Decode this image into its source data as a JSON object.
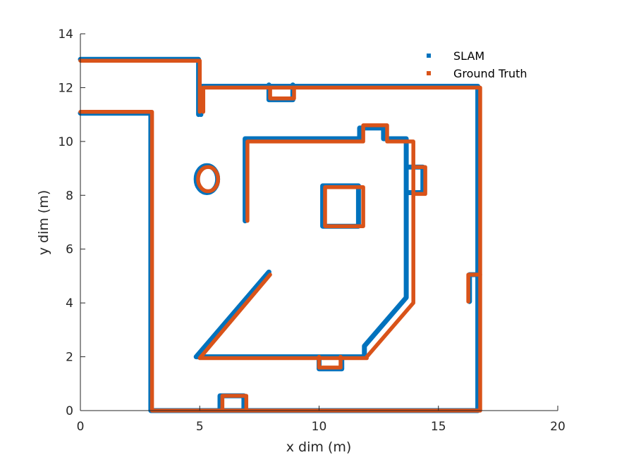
{
  "chart_data": {
    "type": "scatter",
    "xlabel": "x dim (m)",
    "ylabel": "y dim (m)",
    "xlim": [
      0,
      20
    ],
    "ylim": [
      0,
      14
    ],
    "xticks": [
      "0",
      "5",
      "10",
      "15",
      "20"
    ],
    "yticks": [
      "0",
      "2",
      "4",
      "6",
      "8",
      "10",
      "12",
      "14"
    ],
    "xtick_values": [
      0,
      5,
      10,
      15,
      20
    ],
    "ytick_values": [
      0,
      2,
      4,
      6,
      8,
      10,
      12,
      14
    ],
    "grid": false,
    "legend_position": "top-right",
    "series": [
      {
        "name": "SLAM",
        "color": "#0072BD",
        "paths": [
          [
            [
              0,
              13.05
            ],
            [
              4.95,
              13.05
            ],
            [
              4.95,
              11.0
            ]
          ],
          [
            [
              0,
              11.05
            ],
            [
              2.95,
              11.05
            ],
            [
              2.95,
              0.0
            ],
            [
              16.65,
              0.0
            ],
            [
              16.65,
              12.05
            ],
            [
              5.05,
              12.05
            ],
            [
              5.05,
              11.0
            ]
          ],
          [
            [
              7.9,
              12.1
            ],
            [
              7.9,
              11.55
            ],
            [
              8.9,
              11.55
            ],
            [
              8.9,
              12.1
            ]
          ],
          [
            [
              6.9,
              7.05
            ],
            [
              6.9,
              10.1
            ],
            [
              11.7,
              10.1
            ],
            [
              11.7,
              10.5
            ],
            [
              12.7,
              10.5
            ],
            [
              12.7,
              10.1
            ],
            [
              13.65,
              10.1
            ],
            [
              13.65,
              4.2
            ],
            [
              11.9,
              2.4
            ],
            [
              11.9,
              2.0
            ],
            [
              4.85,
              2.0
            ],
            [
              7.9,
              5.15
            ]
          ],
          [
            [
              10.15,
              6.85
            ],
            [
              10.15,
              8.35
            ],
            [
              11.65,
              8.35
            ],
            [
              11.65,
              6.85
            ],
            [
              10.15,
              6.85
            ]
          ],
          [
            [
              16.3,
              4.05
            ],
            [
              16.3,
              5.05
            ],
            [
              16.65,
              5.05
            ]
          ],
          [
            [
              13.75,
              8.1
            ],
            [
              14.35,
              8.1
            ],
            [
              14.35,
              9.05
            ],
            [
              13.75,
              9.05
            ]
          ],
          [
            [
              5.85,
              0.0
            ],
            [
              5.85,
              0.55
            ],
            [
              6.85,
              0.55
            ],
            [
              6.85,
              0.0
            ]
          ],
          [
            [
              10.0,
              1.95
            ],
            [
              10.0,
              1.55
            ],
            [
              10.95,
              1.55
            ],
            [
              10.95,
              1.95
            ]
          ]
        ],
        "ellipse": {
          "cx": 5.3,
          "cy": 8.6,
          "rx": 0.45,
          "ry": 0.5
        }
      },
      {
        "name": "Ground Truth",
        "color": "#D95319",
        "paths": [
          [
            [
              0,
              13.0
            ],
            [
              5.0,
              13.0
            ],
            [
              5.0,
              11.1
            ]
          ],
          [
            [
              0,
              11.1
            ],
            [
              3.0,
              11.1
            ],
            [
              3.0,
              0.0
            ],
            [
              16.75,
              0.0
            ],
            [
              16.75,
              12.0
            ],
            [
              5.15,
              12.0
            ],
            [
              5.15,
              11.1
            ]
          ],
          [
            [
              7.95,
              12.0
            ],
            [
              7.95,
              11.6
            ],
            [
              8.95,
              11.6
            ],
            [
              8.95,
              12.0
            ]
          ],
          [
            [
              7.0,
              7.05
            ],
            [
              7.0,
              10.0
            ],
            [
              11.85,
              10.0
            ],
            [
              11.85,
              10.6
            ],
            [
              12.85,
              10.6
            ],
            [
              12.85,
              10.0
            ],
            [
              13.95,
              10.0
            ],
            [
              13.95,
              4.0
            ],
            [
              12.0,
              2.0
            ],
            [
              12.0,
              1.95
            ],
            [
              5.0,
              1.95
            ],
            [
              7.95,
              5.05
            ]
          ],
          [
            [
              10.25,
              6.85
            ],
            [
              10.25,
              8.3
            ],
            [
              11.85,
              8.3
            ],
            [
              11.85,
              6.85
            ],
            [
              10.25,
              6.85
            ]
          ],
          [
            [
              16.25,
              4.05
            ],
            [
              16.25,
              5.05
            ],
            [
              16.75,
              5.05
            ]
          ],
          [
            [
              13.95,
              8.05
            ],
            [
              14.45,
              8.05
            ],
            [
              14.45,
              9.05
            ],
            [
              13.95,
              9.05
            ]
          ],
          [
            [
              5.95,
              0.0
            ],
            [
              5.95,
              0.55
            ],
            [
              6.95,
              0.55
            ],
            [
              6.95,
              0.0
            ]
          ],
          [
            [
              10.0,
              2.0
            ],
            [
              10.0,
              1.6
            ],
            [
              10.9,
              1.6
            ],
            [
              10.9,
              2.0
            ]
          ]
        ],
        "ellipse": {
          "cx": 5.35,
          "cy": 8.6,
          "rx": 0.42,
          "ry": 0.45
        }
      }
    ]
  }
}
